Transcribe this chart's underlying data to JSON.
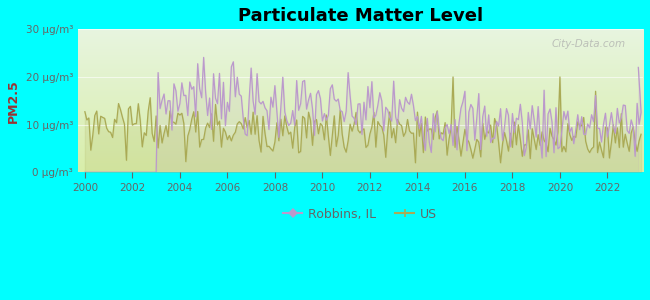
{
  "title": "Particulate Matter Level",
  "ylabel": "PM2.5",
  "xlabel": "",
  "background_outer": "#00FFFF",
  "ylim": [
    0,
    30
  ],
  "yticks": [
    0,
    10,
    20,
    30
  ],
  "ytick_labels": [
    "0 μg/m³",
    "10 μg/m³",
    "20 μg/m³",
    "30 μg/m³"
  ],
  "xstart": 1999.7,
  "xend": 2023.5,
  "xticks": [
    2000,
    2002,
    2004,
    2006,
    2008,
    2010,
    2012,
    2014,
    2016,
    2018,
    2020,
    2022
  ],
  "robbins_color": "#bb99cc",
  "us_color": "#aaaa55",
  "legend_robbins": "Robbins, IL",
  "legend_us": "US",
  "watermark": "City-Data.com",
  "ylabel_color": "#993333",
  "tick_color": "#666666",
  "bg_top": "#e8f5e0",
  "bg_bottom": "#d8eeaa"
}
